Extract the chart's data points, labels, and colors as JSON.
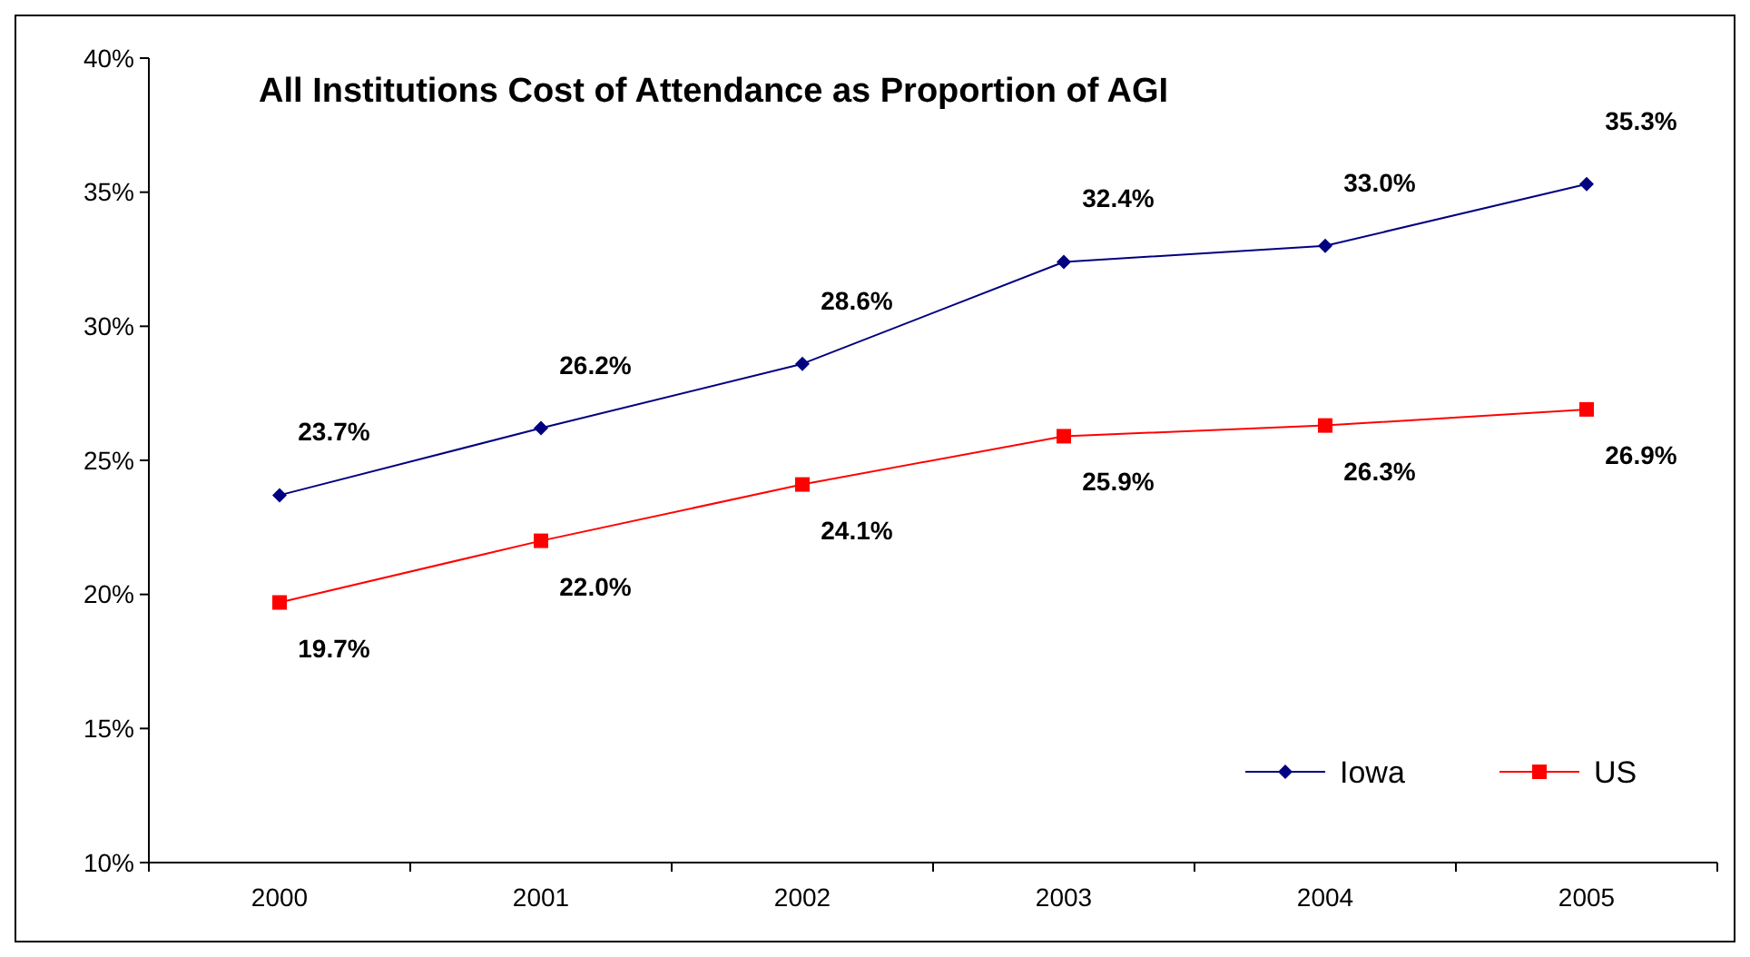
{
  "chart_data": {
    "type": "line",
    "title": "All Institutions Cost of Attendance as Proportion of AGI",
    "categories": [
      "2000",
      "2001",
      "2002",
      "2003",
      "2004",
      "2005"
    ],
    "series": [
      {
        "name": "Iowa",
        "color": "#000080",
        "marker": "diamond",
        "values": [
          23.7,
          26.2,
          28.6,
          32.4,
          33.0,
          35.3
        ],
        "value_labels": [
          "23.7%",
          "26.2%",
          "28.6%",
          "32.4%",
          "33.0%",
          "35.3%"
        ]
      },
      {
        "name": "US",
        "color": "#ff0000",
        "marker": "square",
        "values": [
          19.7,
          22.0,
          24.1,
          25.9,
          26.3,
          26.9
        ],
        "value_labels": [
          "19.7%",
          "22.0%",
          "24.1%",
          "25.9%",
          "26.3%",
          "26.9%"
        ]
      }
    ],
    "ylim": [
      10,
      40
    ],
    "yticks": [
      {
        "value": 10,
        "label": "10%"
      },
      {
        "value": 15,
        "label": "15%"
      },
      {
        "value": 20,
        "label": "20%"
      },
      {
        "value": 25,
        "label": "25%"
      },
      {
        "value": 30,
        "label": "30%"
      },
      {
        "value": 35,
        "label": "35%"
      },
      {
        "value": 40,
        "label": "40%"
      }
    ],
    "grid": false,
    "legend": "bottom right"
  }
}
